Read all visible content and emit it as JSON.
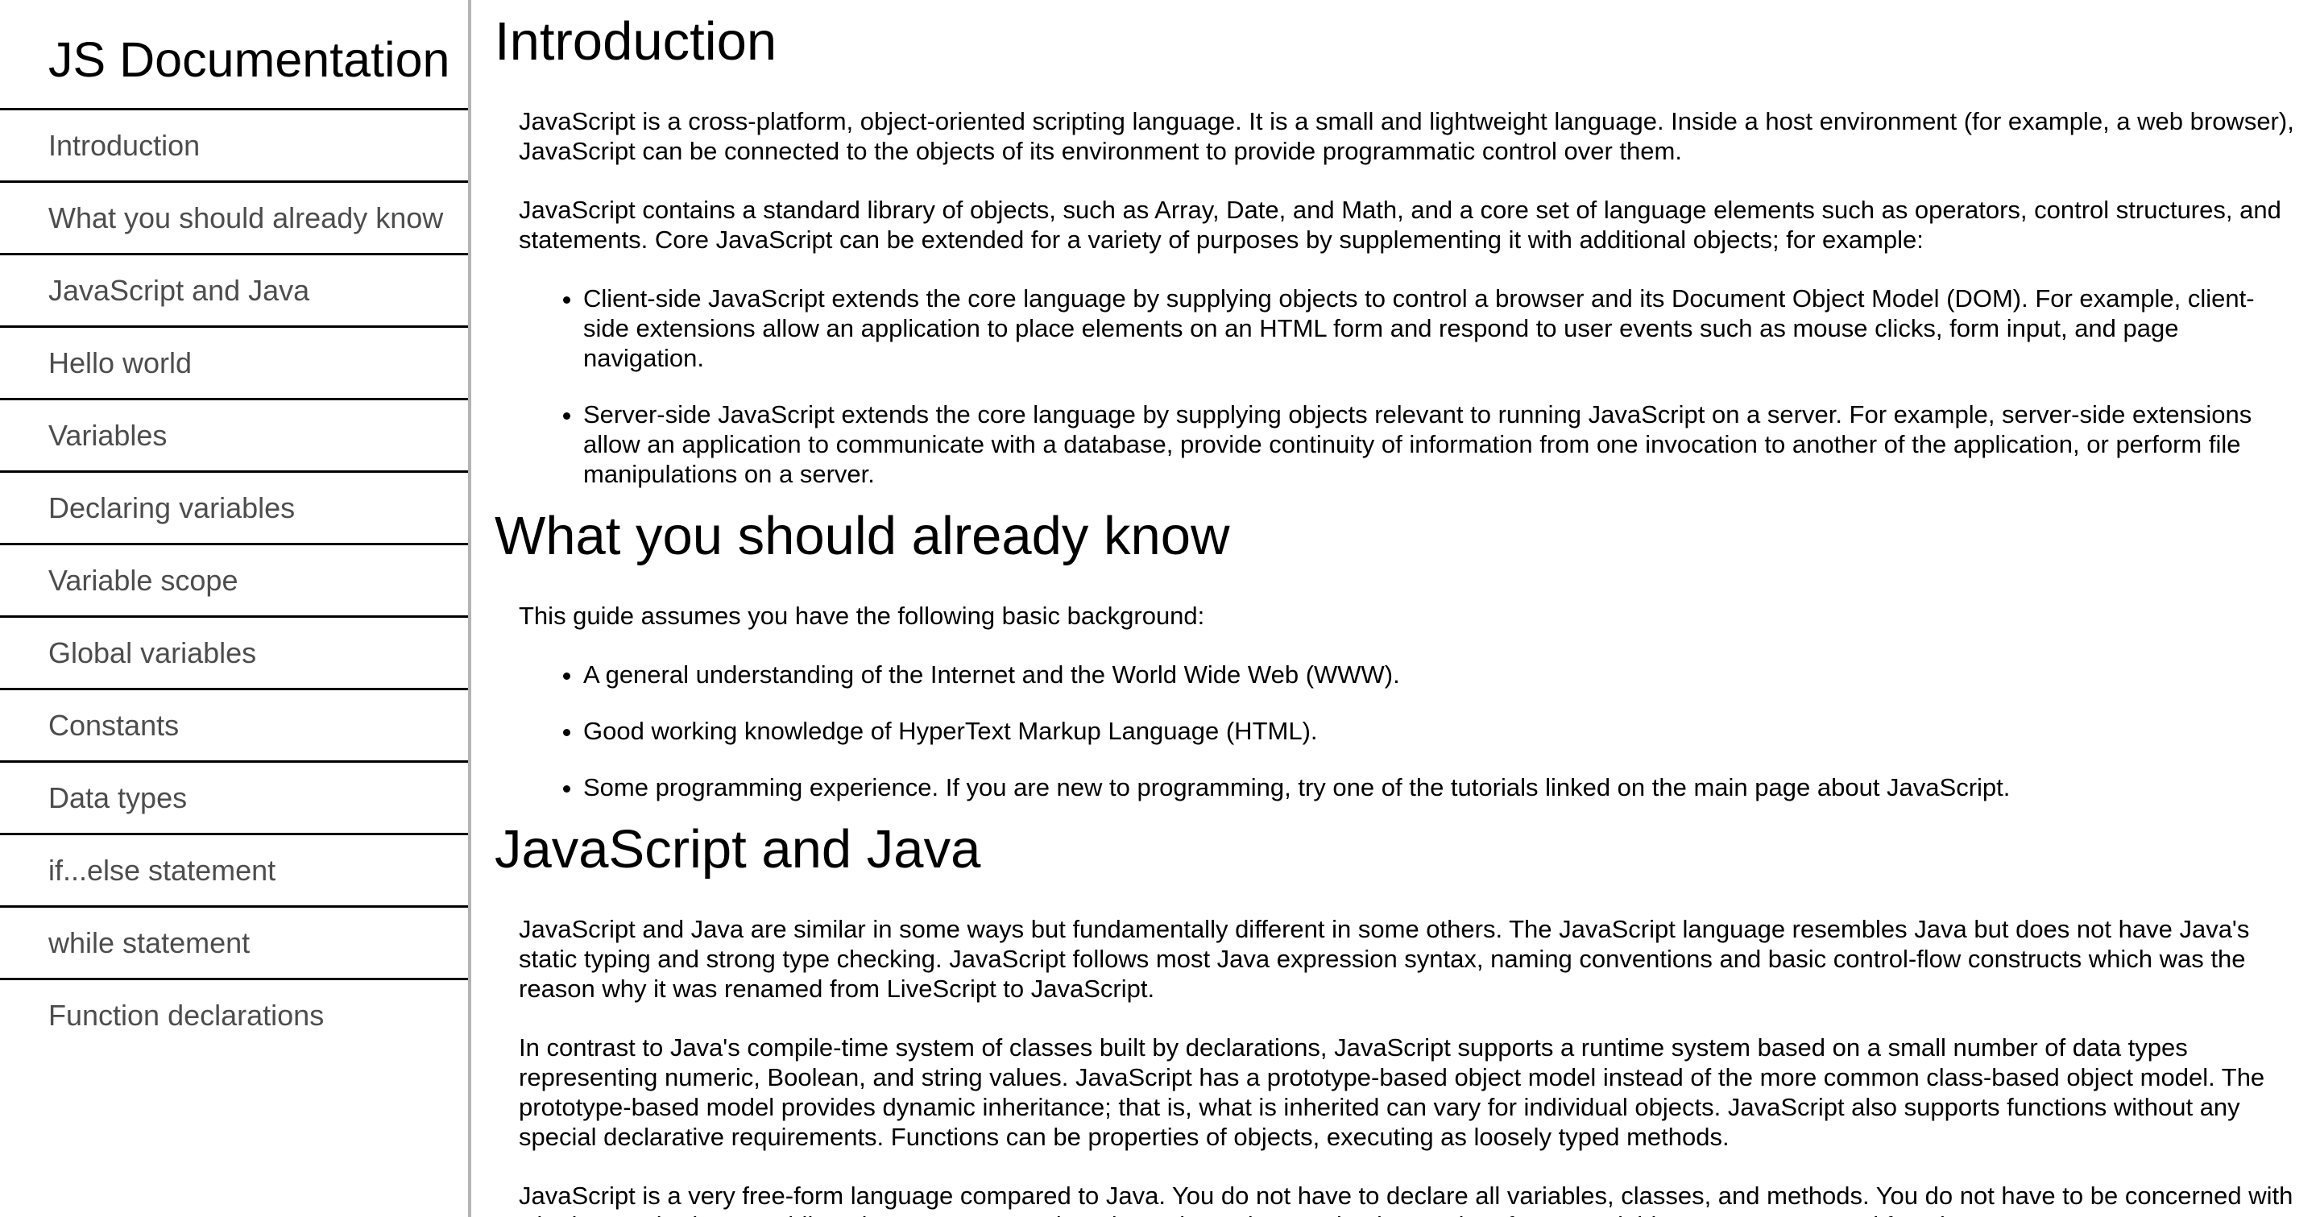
{
  "navbar": {
    "title": "JS Documentation",
    "items": [
      {
        "label": "Introduction"
      },
      {
        "label": "What you should already know"
      },
      {
        "label": "JavaScript and Java"
      },
      {
        "label": "Hello world"
      },
      {
        "label": "Variables"
      },
      {
        "label": "Declaring variables"
      },
      {
        "label": "Variable scope"
      },
      {
        "label": "Global variables"
      },
      {
        "label": "Constants"
      },
      {
        "label": "Data types"
      },
      {
        "label": "if...else statement"
      },
      {
        "label": "while statement"
      },
      {
        "label": "Function declarations"
      }
    ]
  },
  "main": {
    "introduction": {
      "title": "Introduction",
      "p1": "JavaScript is a cross-platform, object-oriented scripting language. It is a small and lightweight language. Inside a host environment (for example, a web browser), JavaScript can be connected to the objects of its environment to provide programmatic control over them.",
      "p2": "JavaScript contains a standard library of objects, such as Array, Date, and Math, and a core set of language elements such as operators, control structures, and statements. Core JavaScript can be extended for a variety of purposes by supplementing it with additional objects; for example:",
      "bullets": [
        "Client-side JavaScript extends the core language by supplying objects to control a browser and its Document Object Model (DOM). For example, client-side extensions allow an application to place elements on an HTML form and respond to user events such as mouse clicks, form input, and page navigation.",
        "Server-side JavaScript extends the core language by supplying objects relevant to running JavaScript on a server. For example, server-side extensions allow an application to communicate with a database, provide continuity of information from one invocation to another of the application, or perform file manipulations on a server."
      ]
    },
    "what_you_should_know": {
      "title": "What you should already know",
      "p1": "This guide assumes you have the following basic background:",
      "bullets": [
        "A general understanding of the Internet and the World Wide Web (WWW).",
        "Good working knowledge of HyperText Markup Language (HTML).",
        "Some programming experience. If you are new to programming, try one of the tutorials linked on the main page about JavaScript."
      ]
    },
    "javascript_and_java": {
      "title": "JavaScript and Java",
      "p1": "JavaScript and Java are similar in some ways but fundamentally different in some others. The JavaScript language resembles Java but does not have Java's static typing and strong type checking. JavaScript follows most Java expression syntax, naming conventions and basic control-flow constructs which was the reason why it was renamed from LiveScript to JavaScript.",
      "p2": "In contrast to Java's compile-time system of classes built by declarations, JavaScript supports a runtime system based on a small number of data types representing numeric, Boolean, and string values. JavaScript has a prototype-based object model instead of the more common class-based object model. The prototype-based model provides dynamic inheritance; that is, what is inherited can vary for individual objects. JavaScript also supports functions without any special declarative requirements. Functions can be properties of objects, executing as loosely typed methods.",
      "p3": "JavaScript is a very free-form language compared to Java. You do not have to declare all variables, classes, and methods. You do not have to be concerned with whether methods are public, private, or protected, and you do not have to implement interfaces. Variables, parameters, and function"
    }
  }
}
